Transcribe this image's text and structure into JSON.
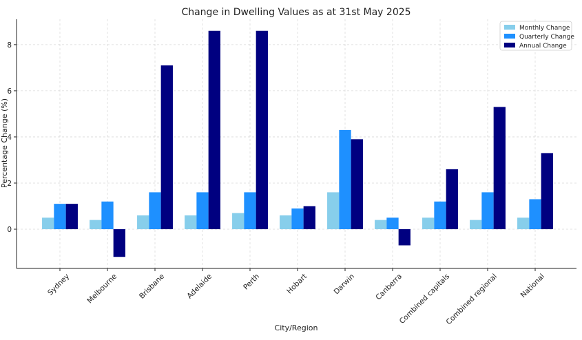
{
  "chart_data": {
    "type": "bar",
    "title": "Change in Dwelling Values as at 31st May 2025",
    "xlabel": "City/Region",
    "ylabel": "Percentage Change (%)",
    "categories": [
      "Sydney",
      "Melbourne",
      "Brisbane",
      "Adelaide",
      "Perth",
      "Hobart",
      "Darwin",
      "Canberra",
      "Combined capitals",
      "Combined regional",
      "National"
    ],
    "series": [
      {
        "name": "Monthly Change",
        "color": "#87ceeb",
        "values": [
          0.5,
          0.4,
          0.6,
          0.6,
          0.7,
          0.6,
          1.6,
          0.4,
          0.5,
          0.4,
          0.5
        ]
      },
      {
        "name": "Quarterly Change",
        "color": "#1e90ff",
        "values": [
          1.1,
          1.2,
          1.6,
          1.6,
          1.6,
          0.9,
          4.3,
          0.5,
          1.2,
          1.6,
          1.3
        ]
      },
      {
        "name": "Annual Change",
        "color": "#000080",
        "values": [
          1.1,
          -1.2,
          7.1,
          8.6,
          8.6,
          1.0,
          3.9,
          -0.7,
          2.6,
          5.3,
          3.3
        ]
      }
    ],
    "ylim": [
      -1.7,
      9.1
    ],
    "yticks": [
      0,
      2,
      4,
      6,
      8
    ],
    "grid": true,
    "legend_position": "top-right"
  }
}
